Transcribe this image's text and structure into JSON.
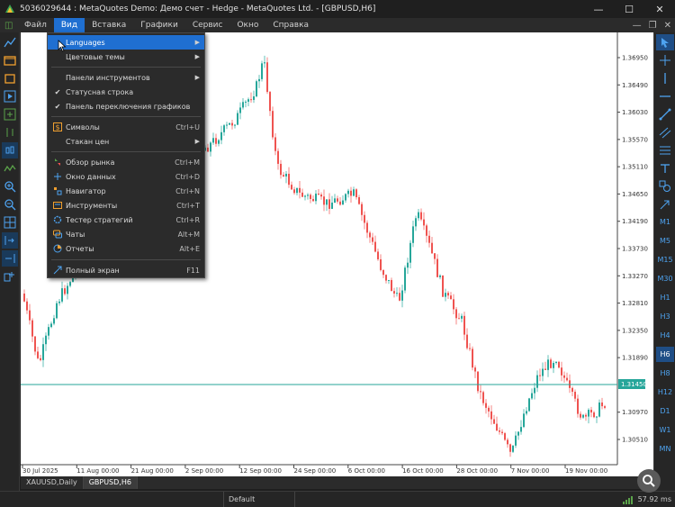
{
  "window": {
    "title": "5036029644 : MetaQuotes Demo: Демо счет - Hedge - MetaQuotes Ltd. - [GBPUSD,H6]",
    "minimize": "—",
    "maximize": "☐",
    "close": "✕"
  },
  "menu": {
    "items": [
      "Файл",
      "Вид",
      "Вставка",
      "Графики",
      "Сервис",
      "Окно",
      "Справка"
    ],
    "active_index": 1
  },
  "view_menu": {
    "items": [
      {
        "label": "Languages",
        "shortcut": "",
        "submenu": true,
        "icon": "",
        "highlighted": true
      },
      {
        "label": "Цветовые темы",
        "shortcut": "",
        "submenu": true,
        "icon": ""
      },
      {
        "label": "Панели инструментов",
        "shortcut": "",
        "submenu": true,
        "icon": ""
      },
      {
        "label": "Статусная строка",
        "shortcut": "",
        "submenu": false,
        "icon": "check"
      },
      {
        "label": "Панель переключения графиков",
        "shortcut": "",
        "submenu": false,
        "icon": "check"
      },
      {
        "label": "Символы",
        "shortcut": "Ctrl+U",
        "submenu": false,
        "icon": "dollar"
      },
      {
        "label": "Стакан цен",
        "shortcut": "",
        "submenu": true,
        "icon": ""
      },
      {
        "label": "Обзор рынка",
        "shortcut": "Ctrl+M",
        "submenu": false,
        "icon": "market-watch"
      },
      {
        "label": "Окно данных",
        "shortcut": "Ctrl+D",
        "submenu": false,
        "icon": "data-window"
      },
      {
        "label": "Навигатор",
        "shortcut": "Ctrl+N",
        "submenu": false,
        "icon": "navigator"
      },
      {
        "label": "Инструменты",
        "shortcut": "Ctrl+T",
        "submenu": false,
        "icon": "toolbox"
      },
      {
        "label": "Тестер стратегий",
        "shortcut": "Ctrl+R",
        "submenu": false,
        "icon": "tester"
      },
      {
        "label": "Чаты",
        "shortcut": "Alt+M",
        "submenu": false,
        "icon": "chat"
      },
      {
        "label": "Отчеты",
        "shortcut": "Alt+E",
        "submenu": false,
        "icon": "reports"
      },
      {
        "label": "Полный экран",
        "shortcut": "F11",
        "submenu": false,
        "icon": "fullscreen"
      }
    ]
  },
  "timeframes": [
    "M1",
    "M5",
    "M15",
    "M30",
    "H1",
    "H3",
    "H4",
    "H6",
    "H8",
    "H12",
    "D1",
    "W1",
    "MN"
  ],
  "active_timeframe": "H6",
  "chart": {
    "symbol": "GBPUSD",
    "timeframe": "H6",
    "current_price": "1.31450",
    "price_labels": [
      "1.36950",
      "1.36490",
      "1.36030",
      "1.35570",
      "1.35110",
      "1.34650",
      "1.34190",
      "1.33730",
      "1.33270",
      "1.32810",
      "1.32350",
      "1.31890",
      "1.31450",
      "1.30970",
      "1.30510"
    ],
    "date_labels": [
      "30 Jul 2025",
      "11 Aug 00:00",
      "21 Aug 00:00",
      "2 Sep 00:00",
      "12 Sep 00:00",
      "24 Sep 00:00",
      "6 Oct 00:00",
      "16 Oct 00:00",
      "28 Oct 00:00",
      "7 Nov 00:00",
      "19 Nov 00:00"
    ],
    "bull_color": "#26a69a",
    "bear_color": "#ef5350",
    "level_line_color": "#26a69a"
  },
  "tabs": [
    {
      "label": "XAUUSD,Daily",
      "active": false
    },
    {
      "label": "GBPUSD,H6",
      "active": true
    }
  ],
  "status": {
    "profile": "Default",
    "traffic": "57.92 ms"
  }
}
